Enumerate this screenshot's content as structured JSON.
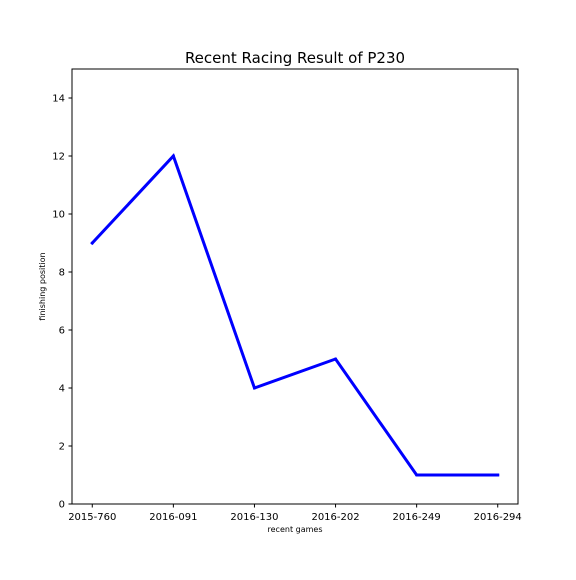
{
  "chart_data": {
    "type": "line",
    "title": "Recent Racing Result of P230",
    "xlabel": "recent games",
    "ylabel": "finishing position",
    "categories": [
      "2015-760",
      "2016-091",
      "2016-130",
      "2016-202",
      "2016-249",
      "2016-294"
    ],
    "series": [
      {
        "values": [
          9,
          12,
          4,
          5,
          1,
          1
        ],
        "color": "#0000ff"
      }
    ],
    "ylim": [
      0,
      15
    ],
    "yticks": [
      0,
      2,
      4,
      6,
      8,
      10,
      12,
      14
    ],
    "grid": false,
    "legend": "none"
  }
}
